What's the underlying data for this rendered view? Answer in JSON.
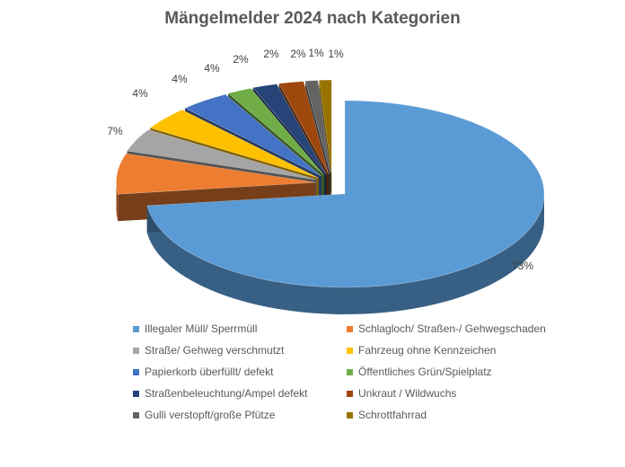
{
  "chart_data": {
    "type": "pie",
    "title": "Mängelmelder 2024 nach Kategorien",
    "categories": [
      "Illegaler Müll/ Sperrmüll",
      "Schlagloch/ Straßen-/ Gehwegschaden",
      "Straße/ Gehweg verschmutzt",
      "Fahrzeug ohne Kennzeichen",
      "Papierkorb überfüllt/ defekt",
      "Öffentliches Grün/Spielplatz",
      "Straßenbeleuchtung/Ampel defekt",
      "Unkraut / Wildwuchs",
      "Gulli verstopft/große Pfütze",
      "Schrottfahrrad"
    ],
    "values": [
      73,
      7,
      4,
      4,
      4,
      2,
      2,
      2,
      1,
      1
    ],
    "data_labels": [
      "73%",
      "7%",
      "4%",
      "4%",
      "4%",
      "2%",
      "2%",
      "2%",
      "1%",
      "1%"
    ],
    "colors": [
      "#5b9bd5",
      "#ed7d31",
      "#a5a5a5",
      "#ffc000",
      "#4472c4",
      "#70ad47",
      "#264478",
      "#9e480e",
      "#636363",
      "#997300"
    ],
    "legend_position": "bottom",
    "style": "3d-exploded-pie"
  }
}
